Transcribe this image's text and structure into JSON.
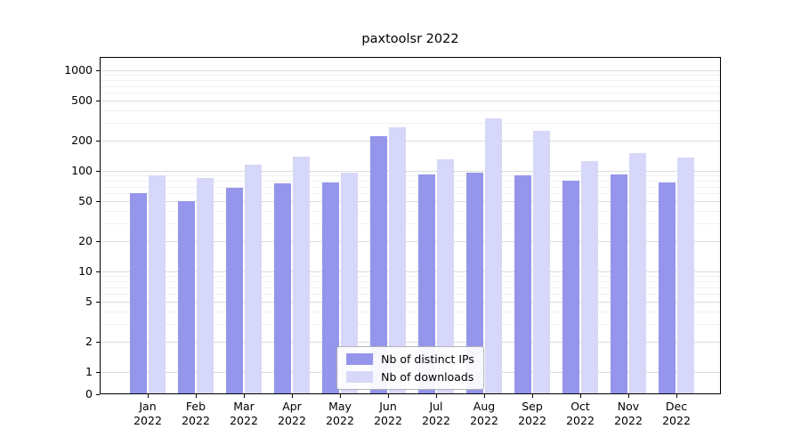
{
  "chart_data": {
    "type": "bar",
    "title": "paxtoolsr 2022",
    "categories": [
      "Jan",
      "Feb",
      "Mar",
      "Apr",
      "May",
      "Jun",
      "Jul",
      "Aug",
      "Sep",
      "Oct",
      "Nov",
      "Dec"
    ],
    "category_year": "2022",
    "series": [
      {
        "name": "Nb of distinct IPs",
        "color": "#9595ec",
        "values": [
          60,
          50,
          68,
          75,
          77,
          220,
          93,
          97,
          90,
          80,
          93,
          77
        ]
      },
      {
        "name": "Nb of downloads",
        "color": "#d7d7f9",
        "values": [
          90,
          85,
          115,
          140,
          97,
          270,
          130,
          330,
          250,
          125,
          150,
          135
        ]
      }
    ],
    "y_ticks": [
      0,
      1,
      2,
      5,
      10,
      20,
      50,
      100,
      200,
      500,
      1000
    ],
    "y_scale": "symlog",
    "ylim": [
      0,
      1350
    ],
    "grid": true,
    "legend_position": "lower center"
  }
}
